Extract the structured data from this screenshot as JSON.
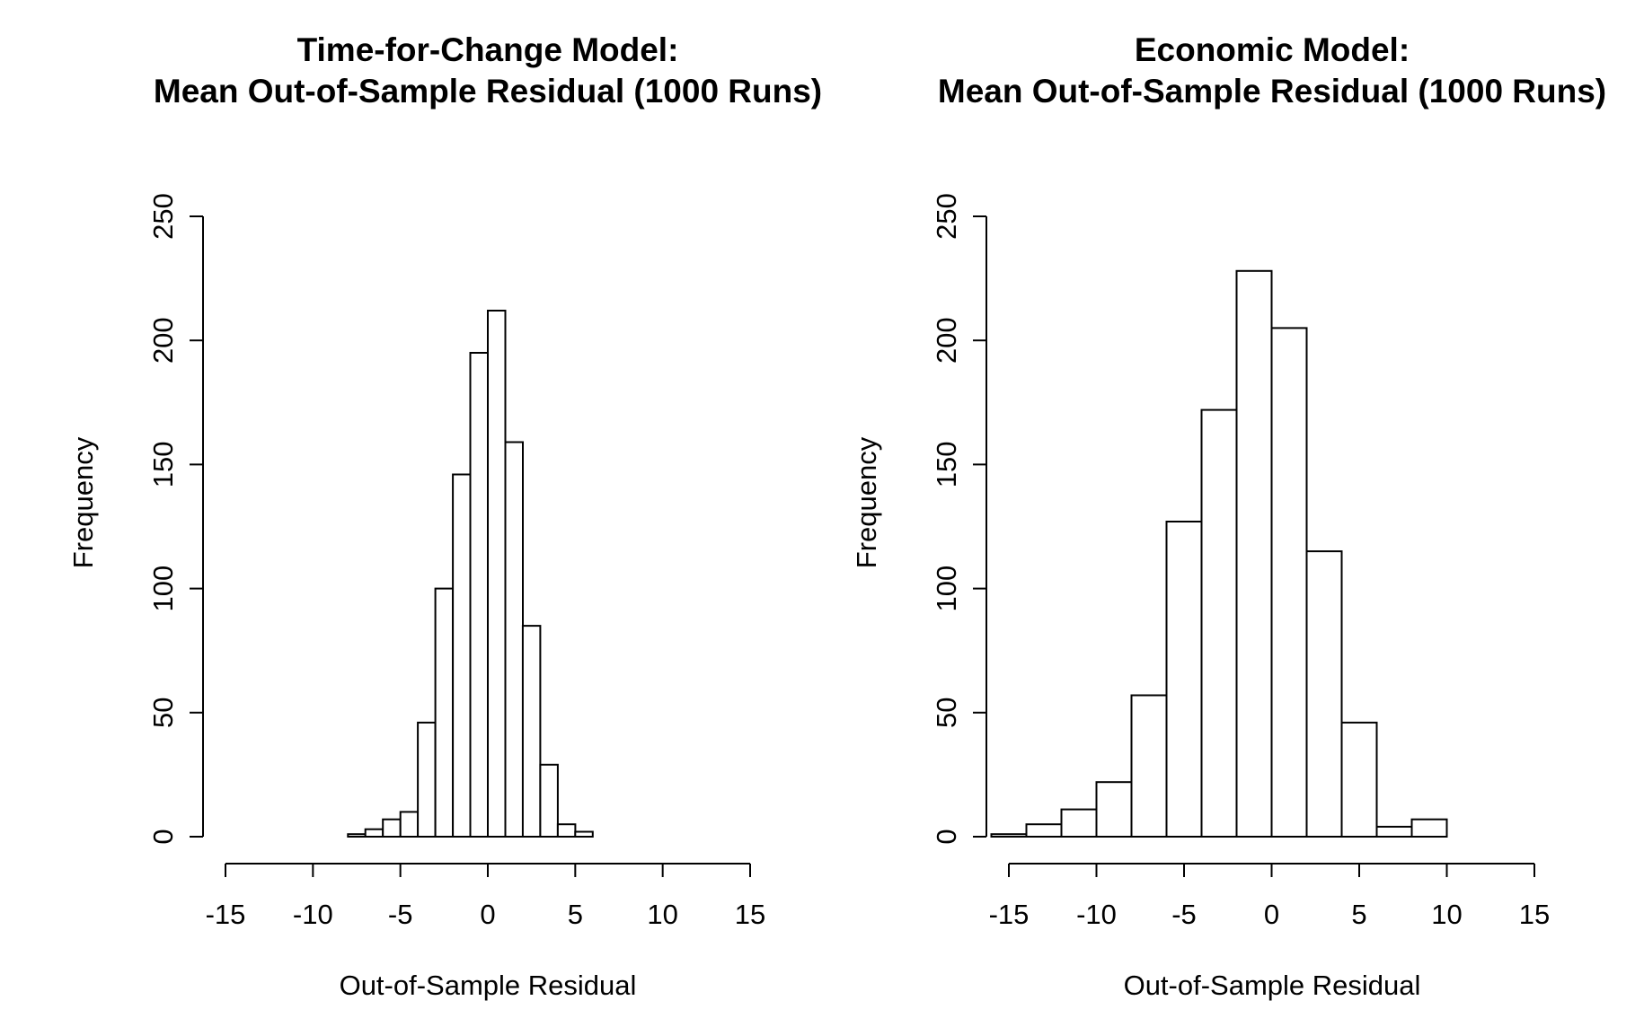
{
  "chart_data": [
    {
      "type": "bar",
      "title_line1": "Time-for-Change Model:",
      "title_line2": "Mean Out-of-Sample Residual (1000 Runs)",
      "xlabel": "Out-of-Sample Residual",
      "ylabel": "Frequency",
      "xlim": [
        -15,
        15
      ],
      "ylim": [
        0,
        250
      ],
      "xticks": [
        "-15",
        "-10",
        "-5",
        "0",
        "5",
        "10",
        "15"
      ],
      "yticks": [
        "0",
        "50",
        "100",
        "150",
        "200",
        "250"
      ],
      "bins": [
        {
          "x0": -8,
          "x1": -7,
          "count": 1
        },
        {
          "x0": -7,
          "x1": -6,
          "count": 3
        },
        {
          "x0": -6,
          "x1": -5,
          "count": 7
        },
        {
          "x0": -5,
          "x1": -4,
          "count": 10
        },
        {
          "x0": -4,
          "x1": -3,
          "count": 46
        },
        {
          "x0": -3,
          "x1": -2,
          "count": 100
        },
        {
          "x0": -2,
          "x1": -1,
          "count": 146
        },
        {
          "x0": -1,
          "x1": 0,
          "count": 195
        },
        {
          "x0": 0,
          "x1": 1,
          "count": 212
        },
        {
          "x0": 1,
          "x1": 2,
          "count": 159
        },
        {
          "x0": 2,
          "x1": 3,
          "count": 85
        },
        {
          "x0": 3,
          "x1": 4,
          "count": 29
        },
        {
          "x0": 4,
          "x1": 5,
          "count": 5
        },
        {
          "x0": 5,
          "x1": 6,
          "count": 2
        }
      ]
    },
    {
      "type": "bar",
      "title_line1": "Economic Model:",
      "title_line2": "Mean Out-of-Sample Residual (1000 Runs)",
      "xlabel": "Out-of-Sample Residual",
      "ylabel": "Frequency",
      "xlim": [
        -15,
        15
      ],
      "ylim": [
        0,
        250
      ],
      "xticks": [
        "-15",
        "-10",
        "-5",
        "0",
        "5",
        "10",
        "15"
      ],
      "yticks": [
        "0",
        "50",
        "100",
        "150",
        "200",
        "250"
      ],
      "bins": [
        {
          "x0": -16,
          "x1": -14,
          "count": 1
        },
        {
          "x0": -14,
          "x1": -12,
          "count": 5
        },
        {
          "x0": -12,
          "x1": -10,
          "count": 11
        },
        {
          "x0": -10,
          "x1": -8,
          "count": 22
        },
        {
          "x0": -8,
          "x1": -6,
          "count": 57
        },
        {
          "x0": -6,
          "x1": -4,
          "count": 127
        },
        {
          "x0": -4,
          "x1": -2,
          "count": 172
        },
        {
          "x0": -2,
          "x1": 0,
          "count": 228
        },
        {
          "x0": 0,
          "x1": 2,
          "count": 205
        },
        {
          "x0": 2,
          "x1": 4,
          "count": 115
        },
        {
          "x0": 4,
          "x1": 6,
          "count": 46
        },
        {
          "x0": 6,
          "x1": 8,
          "count": 4
        },
        {
          "x0": 8,
          "x1": 10,
          "count": 7
        }
      ]
    }
  ]
}
